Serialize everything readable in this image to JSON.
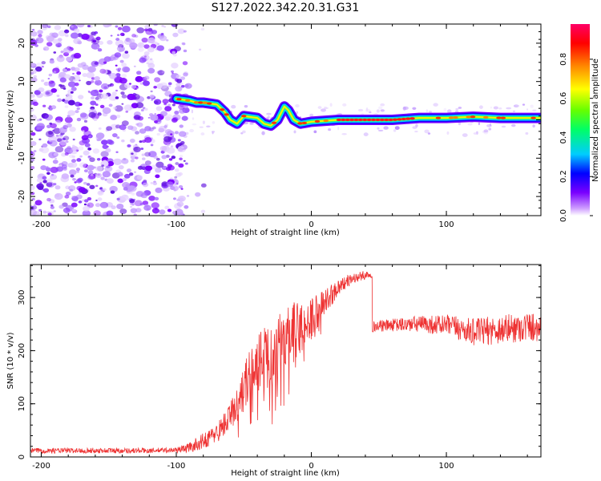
{
  "title": "S127.2022.342.20.31.G31",
  "chart_data": [
    {
      "type": "heatmap",
      "xlabel": "Height of straight line (km)",
      "ylabel": "Frequency (Hz)",
      "xlim": [
        -208,
        170
      ],
      "ylim": [
        -25,
        25
      ],
      "x_ticks": [
        -200,
        -100,
        0,
        100
      ],
      "x_tick_labels": [
        "-200",
        "-100",
        "0",
        "100"
      ],
      "y_ticks": [
        -20,
        -10,
        0,
        10,
        20
      ],
      "y_tick_labels": [
        "-20",
        "-10",
        "0",
        "10",
        "20"
      ],
      "noise_region_x": [
        -208,
        -92
      ],
      "ridge": [
        {
          "x": -100,
          "f": 5.5
        },
        {
          "x": -90,
          "f": 5
        },
        {
          "x": -85,
          "f": 4.5
        },
        {
          "x": -80,
          "f": 4.5
        },
        {
          "x": -70,
          "f": 4
        },
        {
          "x": -64,
          "f": 2
        },
        {
          "x": -60,
          "f": 0
        },
        {
          "x": -55,
          "f": -1
        },
        {
          "x": -50,
          "f": 1
        },
        {
          "x": -40,
          "f": 0.5
        },
        {
          "x": -35,
          "f": -1
        },
        {
          "x": -30,
          "f": -1.5
        },
        {
          "x": -25,
          "f": 0
        },
        {
          "x": -20,
          "f": 3.5
        },
        {
          "x": -17,
          "f": 2.5
        },
        {
          "x": -13,
          "f": 0
        },
        {
          "x": -8,
          "f": -1
        },
        {
          "x": 0,
          "f": -0.5
        },
        {
          "x": 20,
          "f": 0
        },
        {
          "x": 40,
          "f": 0
        },
        {
          "x": 60,
          "f": 0
        },
        {
          "x": 80,
          "f": 0.5
        },
        {
          "x": 100,
          "f": 0.5
        },
        {
          "x": 120,
          "f": 0.8
        },
        {
          "x": 140,
          "f": 0.5
        },
        {
          "x": 170,
          "f": 0.5
        }
      ],
      "colorbar": {
        "label": "Normalized spectral amplitude",
        "range": [
          0,
          0.98
        ],
        "ticks": [
          0.0,
          0.2,
          0.4,
          0.6,
          0.8
        ],
        "tick_labels": [
          "0.0",
          "0.2",
          "0.4",
          "0.6",
          "0.8"
        ],
        "colors": [
          "#ffffff",
          "#cc99ff",
          "#7a00ff",
          "#0000ff",
          "#00ccff",
          "#00ff66",
          "#66ff00",
          "#ffff00",
          "#ff8800",
          "#ff0000",
          "#ff0066"
        ]
      }
    },
    {
      "type": "line",
      "xlabel": "Height of straight line (km)",
      "ylabel": "SNR (10 * v/v)",
      "xlim": [
        -208,
        170
      ],
      "ylim": [
        0,
        362
      ],
      "x_ticks": [
        -200,
        -100,
        0,
        100
      ],
      "x_tick_labels": [
        "-200",
        "-100",
        "0",
        "100"
      ],
      "y_ticks": [
        0,
        100,
        200,
        300
      ],
      "y_tick_labels": [
        "0",
        "100",
        "200",
        "300"
      ],
      "color": "#ee3333",
      "trend": {
        "x": [
          -208,
          -120,
          -100,
          -90,
          -80,
          -70,
          -60,
          -50,
          -40,
          -30,
          -20,
          -10,
          0,
          10,
          20,
          30,
          44,
          45,
          60,
          80,
          100,
          120,
          140,
          160,
          170
        ],
        "y": [
          12,
          12,
          13,
          18,
          30,
          45,
          75,
          130,
          180,
          190,
          220,
          240,
          260,
          290,
          320,
          335,
          345,
          245,
          248,
          250,
          248,
          235,
          240,
          245,
          245
        ],
        "amplitude": [
          5,
          5,
          5,
          10,
          15,
          18,
          28,
          45,
          55,
          60,
          60,
          55,
          40,
          25,
          15,
          10,
          8,
          10,
          12,
          16,
          20,
          25,
          28,
          28,
          28
        ]
      }
    }
  ]
}
